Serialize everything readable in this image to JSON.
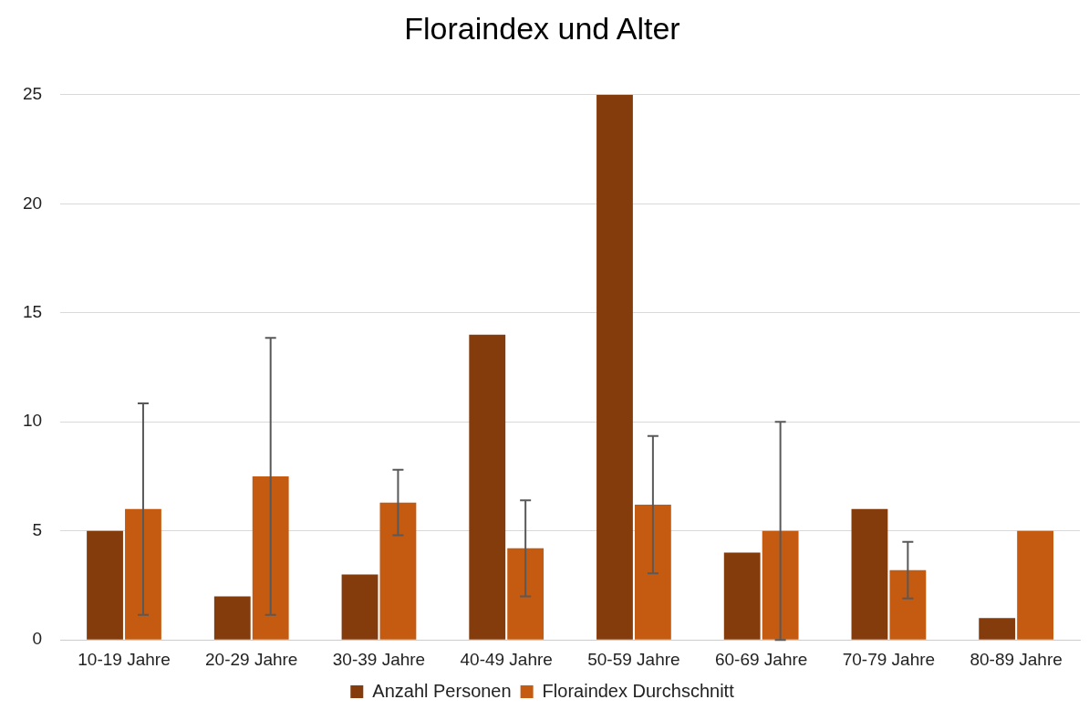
{
  "chart_data": {
    "type": "bar",
    "title": "Floraindex und Alter",
    "categories": [
      "10-19 Jahre",
      "20-29 Jahre",
      "30-39 Jahre",
      "40-49 Jahre",
      "50-59 Jahre",
      "60-69 Jahre",
      "70-79 Jahre",
      "80-89 Jahre"
    ],
    "series": [
      {
        "name": "Anzahl Personen",
        "color": "#843c0c",
        "values": [
          5,
          2,
          3,
          14,
          25,
          4,
          6,
          1
        ]
      },
      {
        "name": "Floraindex Durchschnitt",
        "color": "#c55a11",
        "values": [
          6,
          7.5,
          6.3,
          4.2,
          6.2,
          5,
          3.2,
          5
        ],
        "errors": [
          4.85,
          6.35,
          1.5,
          2.2,
          3.15,
          5,
          1.3,
          null
        ]
      }
    ],
    "ylim": [
      0,
      25
    ],
    "yticks": [
      0,
      5,
      10,
      15,
      20,
      25
    ],
    "grid": "y",
    "legend": "bottom"
  }
}
